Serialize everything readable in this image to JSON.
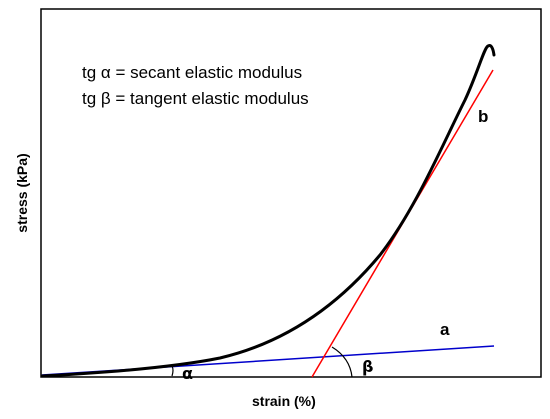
{
  "legend": {
    "line1": "tg α = secant elastic modulus",
    "line2": "tg β = tangent elastic modulus"
  },
  "axes": {
    "xlabel": "strain (%)",
    "ylabel": "stress (kPa)"
  },
  "labels": {
    "line_a": "a",
    "line_b": "b",
    "angle_alpha": "α",
    "angle_beta": "β"
  },
  "colors": {
    "curve": "#000000",
    "secant_line": "#0000cc",
    "tangent_line": "#ff0000",
    "frame": "#000000"
  }
}
